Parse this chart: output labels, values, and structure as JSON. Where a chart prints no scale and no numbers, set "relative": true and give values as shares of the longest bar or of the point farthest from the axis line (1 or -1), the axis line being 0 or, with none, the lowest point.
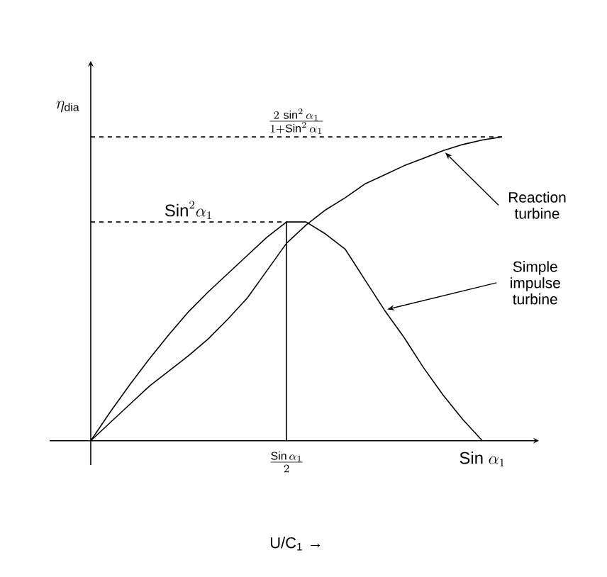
{
  "chart_data": {
    "type": "line",
    "relative": true,
    "marker": "none",
    "grid": false,
    "xlabel": "U/C$_{1}$ →",
    "ylabel": "\\eta_{\\mathrm{dia}}",
    "categories": [
      null,
      null,
      null,
      null,
      null,
      null,
      null,
      null,
      null,
      null,
      "\\frac{\\mathrm{Sin}\\,\\alpha_1}{2}",
      null,
      null,
      null,
      null,
      null,
      null,
      null,
      null,
      null,
      "\\mathrm{Sin}\\;\\alpha_1",
      null
    ],
    "series": [
      {
        "color": "#000000",
        "values": [
          0,
          0.095,
          0.185,
          0.27,
          0.35,
          0.425,
          0.49,
          0.55,
          0.61,
          0.67,
          0.72,
          0.72,
          0.68,
          0.63,
          0.53,
          0.43,
          0.34,
          0.24,
          0.15,
          0.07,
          0,
          null
        ]
      },
      {
        "color": "#000000",
        "values": [
          0,
          0.06,
          0.12,
          0.18,
          0.23,
          0.28,
          0.335,
          0.4,
          0.47,
          0.56,
          0.65,
          0.71,
          0.76,
          0.8,
          0.845,
          0.875,
          0.905,
          0.93,
          0.955,
          0.975,
          0.99,
          1.0
        ]
      }
    ],
    "ref_lines": [
      {
        "axis": "y",
        "value": 1.0,
        "label": "\\frac{2\\,\\sin^2\\alpha_1}{1+\\mathrm{Sin}^2\\,\\alpha_1}",
        "line_style": "dashed"
      },
      {
        "axis": "y",
        "value": 0.72,
        "label": "\\mathrm{Sin}^2\\alpha_1",
        "line_style": "dashed"
      },
      {
        "axis": "x",
        "value": "\\frac{\\mathrm{Sin}\\,\\alpha_1}{2}"
      }
    ],
    "annotations": [
      "Reaction turbine",
      "Simple impulse turbine"
    ]
  }
}
